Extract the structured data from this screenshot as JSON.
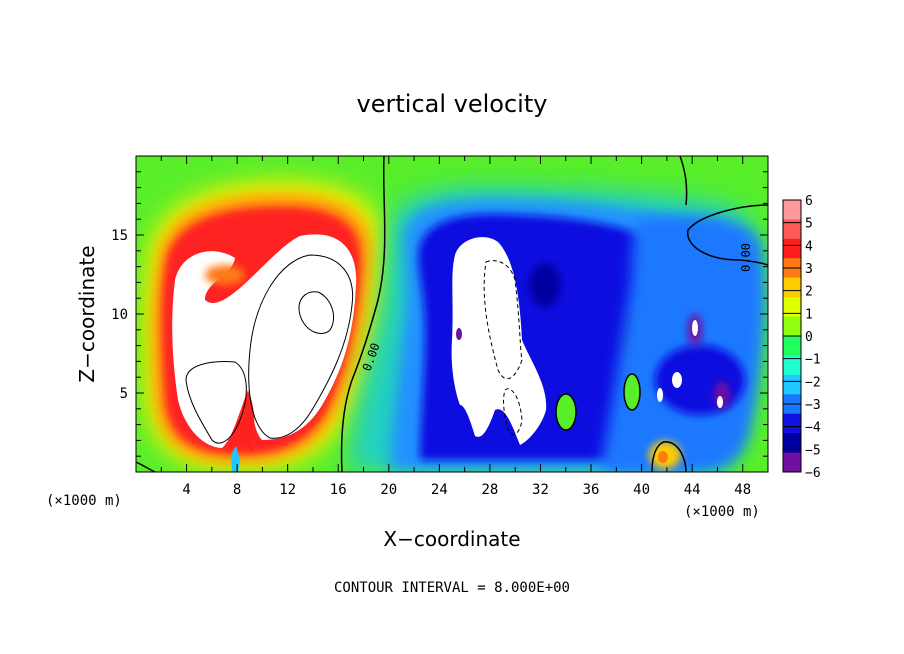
{
  "chart_data": {
    "type": "heatmap",
    "title": "vertical velocity",
    "xlabel": "X−coordinate",
    "ylabel": "Z−coordinate",
    "x_unit_label": "(×1000 m)",
    "y_unit_label": "(×1000 m)",
    "xlim": [
      0,
      50
    ],
    "ylim": [
      0,
      20
    ],
    "x_ticks": [
      "4",
      "8",
      "12",
      "16",
      "20",
      "24",
      "28",
      "32",
      "36",
      "40",
      "44",
      "48"
    ],
    "y_ticks": [
      "5",
      "10",
      "15"
    ],
    "contour_interval_text": "CONTOUR INTERVAL = 8.000E+00",
    "contour_label": "0.00",
    "colorbar": {
      "labels": [
        "6",
        "5",
        "4",
        "3",
        "2",
        "1",
        "0",
        "−1",
        "−2",
        "−3",
        "−4",
        "−5",
        "−6"
      ],
      "colors": [
        "#ff9a9a",
        "#ff5a5a",
        "#ff1e1e",
        "#ff7a14",
        "#ffcc00",
        "#e0ff00",
        "#90ff10",
        "#20ff60",
        "#20ffd0",
        "#20c8ff",
        "#1a78ff",
        "#1010e0",
        "#0000a0",
        "#7010a0"
      ]
    },
    "background_value_color": "#58ee2a",
    "features": [
      {
        "name": "updraft",
        "x": 8.5,
        "z": 10,
        "peak": "> 6"
      },
      {
        "name": "downdraft",
        "x": 28,
        "z": 9,
        "peak": "< -6"
      },
      {
        "name": "downdraft",
        "x": 43,
        "z": 7,
        "peak": "< -6"
      },
      {
        "name": "updraft",
        "x": 41.5,
        "z": 1,
        "peak": "3"
      }
    ]
  }
}
